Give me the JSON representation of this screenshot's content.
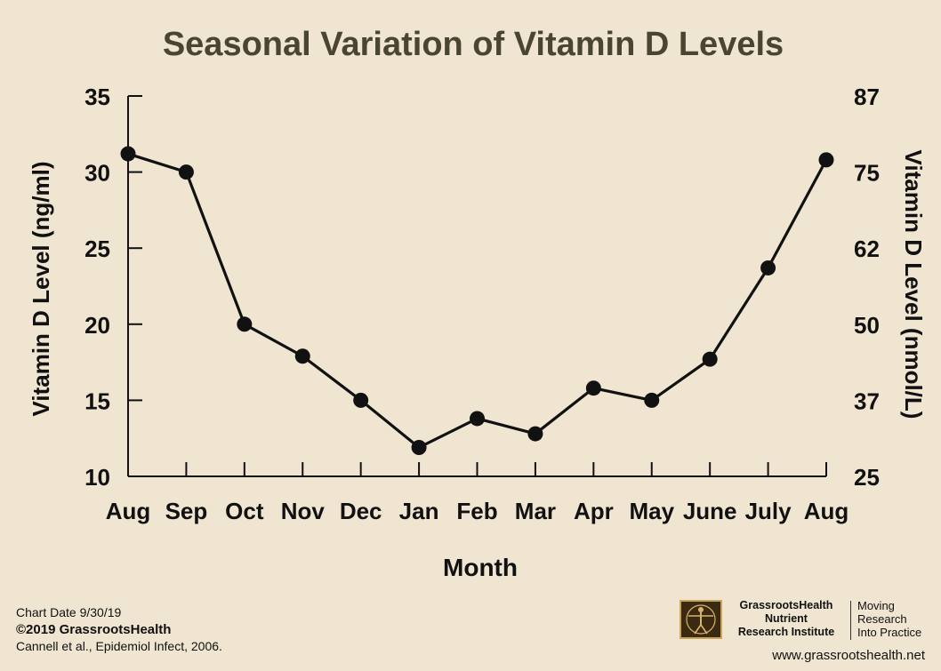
{
  "chart_data": {
    "type": "line",
    "title": "Seasonal Variation of Vitamin D Levels",
    "xlabel": "Month",
    "ylabel": "Vitamin D Level (ng/ml)",
    "ylabel_right": "Vitamin D Level (nmol/L)",
    "categories": [
      "Aug",
      "Sep",
      "Oct",
      "Nov",
      "Dec",
      "Jan",
      "Feb",
      "Mar",
      "Apr",
      "May",
      "June",
      "July",
      "Aug"
    ],
    "values": [
      31.2,
      30.0,
      20.0,
      17.9,
      15.0,
      11.9,
      13.8,
      12.8,
      15.8,
      15.0,
      17.7,
      23.7,
      30.8
    ],
    "ylim": [
      10,
      35
    ],
    "yticks": [
      "10",
      "15",
      "20",
      "25",
      "30",
      "35"
    ],
    "yticks_right": [
      "25",
      "37",
      "50",
      "62",
      "75",
      "87"
    ],
    "grid": false,
    "line_color": "#111111",
    "marker_color": "#111111"
  },
  "footer": {
    "chart_date": "Chart Date 9/30/19",
    "copyright": "©2019 GrassrootsHealth",
    "citation": "Cannell et al., Epidemiol Infect, 2006.",
    "brand_line1": "GrassrootsHealth",
    "brand_line2": "Nutrient",
    "brand_line3": "Research Institute",
    "tagline1": "Moving",
    "tagline2": "Research",
    "tagline3": "Into Practice",
    "website": "www.grassrootshealth.net"
  },
  "colors": {
    "background": "#efe5d1",
    "title": "#4a4530"
  }
}
